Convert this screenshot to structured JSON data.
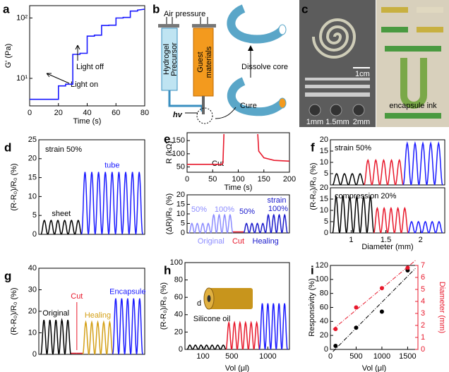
{
  "panel_labels": [
    "a",
    "b",
    "c",
    "d",
    "e",
    "f",
    "g",
    "h",
    "i"
  ],
  "diagram_b": {
    "air": "Air pressure",
    "precursor": [
      "Hydrogel",
      "Precursor"
    ],
    "guest": [
      "Guest",
      "materials"
    ],
    "dissolve": "Dissolve core",
    "hv": "hv",
    "cure": "Cure"
  },
  "photo_c": {
    "scale": "1cm",
    "sizes": [
      "1mm",
      "1.5mm",
      "2mm"
    ],
    "ink": "encapsule ink"
  },
  "chart_data": [
    {
      "type": "line",
      "yscale": "log",
      "xlabel": "Time (s)",
      "ylabel": "G' (Pa)",
      "x": [
        0,
        20,
        20,
        25,
        25,
        30,
        30,
        35,
        35,
        40,
        40,
        45,
        45,
        50,
        50,
        55,
        55,
        60,
        60,
        65,
        65,
        70,
        70,
        75,
        75,
        80
      ],
      "values": [
        4.5,
        4.5,
        7.5,
        7.5,
        8,
        8,
        25,
        25,
        26,
        26,
        50,
        50,
        52,
        52,
        75,
        75,
        76,
        76,
        100,
        100,
        102,
        102,
        130,
        130,
        135,
        140
      ],
      "color": "#1a1aff",
      "xlim": [
        0,
        80
      ],
      "xticks": [
        0,
        20,
        40,
        60,
        80
      ],
      "ylim": [
        3.5,
        160
      ],
      "yticks": [
        {
          "value": 10,
          "label": "10¹"
        },
        {
          "value": 100,
          "label": "10²"
        }
      ],
      "annotations": [
        "Light on",
        "Light off"
      ]
    },
    {
      "type": "cycles",
      "ylabel": "(R-R₀)/R₀ (%)",
      "ylim": [
        0,
        25
      ],
      "yticks": [
        0,
        5,
        10,
        15,
        20,
        25
      ],
      "series": [
        {
          "name": "sheet",
          "color": "#000000",
          "values": [
            3.7,
            3.7,
            3.7,
            3.7,
            3.7,
            3.7
          ]
        },
        {
          "name": "tube",
          "color": "#1a1aff",
          "values": [
            16.5,
            16.5,
            16.5,
            16.5,
            16.5,
            16.5,
            16.5,
            16.5,
            16.5
          ]
        }
      ],
      "annotations": [
        "strain 50%"
      ]
    },
    {
      "type": "line",
      "xlabel": "Time (s)",
      "ylabel": "R (kΩ)",
      "x": [
        0,
        68,
        70,
        72,
        100,
        138,
        140,
        150,
        170,
        200
      ],
      "values": [
        60,
        60,
        65,
        175,
        null,
        175,
        110,
        85,
        75,
        72
      ],
      "color": "#e8192c",
      "xlim": [
        0,
        200
      ],
      "xticks": [
        0,
        50,
        100,
        150,
        200
      ],
      "ylim": [
        30,
        180
      ],
      "yticks": [
        50,
        100,
        150
      ],
      "annotations": [
        "Cut"
      ]
    },
    {
      "type": "cycles",
      "ylabel": "(ΔR)/R₀ (%)",
      "ylim": [
        0,
        20
      ],
      "yticks": [
        0,
        5,
        10,
        15,
        20
      ],
      "series": [
        {
          "name": "Original",
          "color": "#8c8cff",
          "values": [
            5,
            5,
            5,
            5,
            9.5,
            9.5,
            9.5,
            9.5
          ]
        },
        {
          "name": "Cut",
          "color": "#e8192c",
          "values": [
            0,
            0
          ]
        },
        {
          "name": "Healing",
          "color": "#1a1acc",
          "values": [
            5,
            5,
            5,
            5,
            9.5,
            9.5,
            9.5,
            9.5
          ]
        }
      ],
      "annotations": [
        "50%",
        "100%",
        "50%",
        "100%",
        "strain"
      ]
    },
    {
      "type": "cycles",
      "ylabel": "(R-R₀)/R₀ (%)",
      "ylim": [
        0,
        20
      ],
      "yticks": [
        5,
        10,
        15,
        20
      ],
      "series": [
        {
          "color": "#000000",
          "values": [
            5,
            5,
            5,
            5
          ]
        },
        {
          "color": "#e8192c",
          "values": [
            11,
            11,
            11,
            11,
            11
          ]
        },
        {
          "color": "#1a1aff",
          "values": [
            18.5,
            18.5,
            18.5,
            18.5,
            18.5
          ]
        }
      ],
      "annotations": [
        "strain 50%"
      ]
    },
    {
      "type": "cycles",
      "xlabel": "Diameter (mm)",
      "xlim": [
        0.7,
        2.35
      ],
      "xticks": [
        1,
        1.5,
        2
      ],
      "ylim": [
        0,
        20
      ],
      "yticks": [
        0,
        5,
        10,
        15,
        20
      ],
      "series": [
        {
          "color": "#000000",
          "values": [
            16,
            16,
            16,
            16,
            16,
            16
          ]
        },
        {
          "color": "#e8192c",
          "values": [
            11,
            11,
            11,
            11,
            11
          ]
        },
        {
          "color": "#1a1aff",
          "values": [
            5,
            5,
            5,
            5,
            5
          ]
        }
      ],
      "annotations": [
        "compression 20%"
      ]
    },
    {
      "type": "cycles",
      "ylabel": "(R-R₀)/R₀ (%)",
      "ylim": [
        0,
        40
      ],
      "yticks": [
        0,
        10,
        20,
        30,
        40
      ],
      "series": [
        {
          "name": "Original",
          "color": "#000000",
          "values": [
            16,
            16,
            16,
            16,
            16
          ]
        },
        {
          "name": "Cut",
          "color": "#e8192c",
          "values": [
            0,
            0
          ]
        },
        {
          "name": "Healing",
          "color": "#d4a017",
          "values": [
            15,
            15,
            15,
            15,
            15
          ]
        },
        {
          "name": "Encapsule",
          "color": "#1a1aff",
          "values": [
            26,
            26,
            26,
            26,
            26
          ]
        }
      ]
    },
    {
      "type": "cycles",
      "xlabel": "Vol (μl)",
      "ylabel": "(R-R₀)/R₀ (%)",
      "xlim": [
        -150,
        1300
      ],
      "xticks": [
        100,
        500,
        1000
      ],
      "ylim": [
        0,
        100
      ],
      "yticks": [
        0,
        20,
        40,
        60,
        80,
        100
      ],
      "series": [
        {
          "color": "#000000",
          "values": [
            5,
            5,
            5,
            5,
            5,
            5,
            5
          ]
        },
        {
          "color": "#e8192c",
          "values": [
            31,
            31,
            31,
            31,
            31,
            31
          ]
        },
        {
          "color": "#1a1aff",
          "values": [
            53,
            53,
            53,
            53,
            53
          ]
        }
      ],
      "annotations": [
        "Silicone oil",
        "d"
      ]
    },
    {
      "type": "scatter",
      "xlabel": "Vol (μl)",
      "ylabel": "Responsivity (%)",
      "y2label": "Diameter (mm)",
      "x": [
        100,
        500,
        1000,
        1500
      ],
      "xlim": [
        0,
        1700
      ],
      "xticks": [
        0,
        500,
        1000,
        1500
      ],
      "ylim": [
        0,
        120
      ],
      "yticks": [
        0,
        20,
        40,
        60,
        80,
        100,
        120
      ],
      "y2lim": [
        0,
        7
      ],
      "y2ticks": [
        0,
        1,
        2,
        3,
        4,
        5,
        6,
        7
      ],
      "series": [
        {
          "color": "#000000",
          "values": [
            5,
            31,
            54,
            113
          ]
        },
        {
          "color": "#e8192c",
          "axis": "y2",
          "values": [
            1.7,
            3.5,
            5.1,
            6.8
          ]
        }
      ]
    }
  ]
}
